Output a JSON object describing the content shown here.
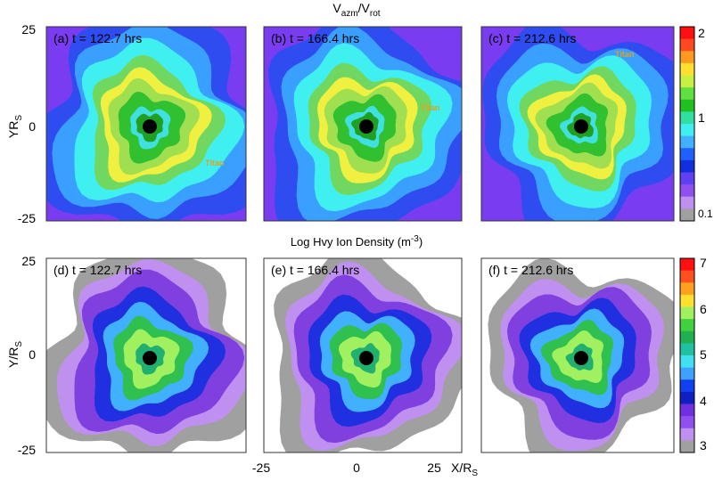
{
  "figure": {
    "top": {
      "title": {
        "v1": "V",
        "s1": "azm",
        "v2": "/V",
        "s2": "rot"
      },
      "y_label": {
        "main": "YR",
        "sub": "S"
      },
      "y_ticks": [
        "25",
        "0",
        "-25"
      ],
      "panels": [
        {
          "label": "(a) t = 122.7 hrs",
          "annotation": "Titan"
        },
        {
          "label": "(b) t = 166.4 hrs",
          "annotation": "Titan"
        },
        {
          "label": "(c) t = 212.6 hrs",
          "annotation": "Titan"
        }
      ],
      "colorbar_labels": [
        "2",
        "1",
        "0.1"
      ]
    },
    "bottom": {
      "title": {
        "main": "Log Hvy Ion Density (m",
        "sup": "-3",
        "end": ")"
      },
      "y_label": {
        "main": "Y/R",
        "sub": "S"
      },
      "y_ticks": [
        "25",
        "0",
        "-25"
      ],
      "panels": [
        {
          "label": "(d) t = 122.7 hrs"
        },
        {
          "label": "(e) t = 166.4 hrs"
        },
        {
          "label": "(f) t = 212.6 hrs"
        }
      ],
      "colorbar_labels": [
        "7",
        "6",
        "5",
        "4",
        "3"
      ],
      "x_ticks": [
        "-25",
        "0",
        "25"
      ],
      "x_label": {
        "main": "X/R",
        "sub": "S"
      }
    }
  }
}
